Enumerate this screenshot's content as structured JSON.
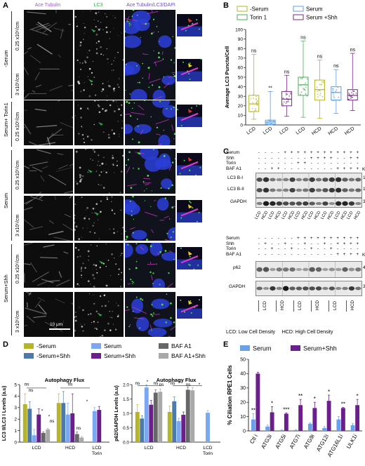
{
  "panel_labels": {
    "a": "A",
    "b": "B",
    "c": "C",
    "d": "D",
    "e": "E"
  },
  "panel_a": {
    "col_titles": [
      "Ace Tubulin",
      "LC3",
      "Ace Tubulin/LC3/DAPI"
    ],
    "groups": [
      "-Serum",
      "Serum+ Torin1",
      "Serum",
      "Serum+Shh"
    ],
    "densities": [
      "0.25 x10⁵/cm",
      "3 x10⁵/cm",
      "0.25 x10⁵/cm",
      "0.25 x10⁵/cm",
      "3 x10⁵/cm",
      "0.25 x10⁵/cm",
      "3 x10⁵/cm"
    ],
    "scale_main": "10 μm",
    "scale_inset": "3 μm",
    "colors": {
      "tubulin": "#d43bd0",
      "lc3": "#4cd84c",
      "dapi": "#2b3fd8",
      "arrow_green": "#2fa84f",
      "arrow_red": "#e0322b",
      "arrow_yellow": "#f0d020"
    }
  },
  "chart_data": [
    {
      "id": "B",
      "type": "box",
      "ylabel": "Average LC3 Puncta/Cell",
      "ylim": [
        0,
        100
      ],
      "yticks": [
        0,
        10,
        20,
        30,
        40,
        50,
        60,
        70,
        80,
        90,
        100
      ],
      "categories": [
        "LCD",
        "LCD",
        "LCD",
        "LCD",
        "HCD",
        "HCD",
        "HCD"
      ],
      "legend": [
        "-Serum",
        "Serum",
        "Torin 1",
        "Serum +Shh"
      ],
      "legend_colors": [
        "#b5b52a",
        "#5b9fe8",
        "#4cae5c",
        "#7a2a8a"
      ],
      "boxes": [
        {
          "group": "-Serum",
          "color": "#b5b52a",
          "min": 6,
          "q1": 14,
          "median": 22,
          "q3": 31,
          "max": 74,
          "sig": "ns"
        },
        {
          "group": "Serum",
          "color": "#5b9fe8",
          "min": 0,
          "q1": 1,
          "median": 3,
          "q3": 5,
          "max": 35,
          "sig": "**"
        },
        {
          "group": "Serum +Shh",
          "color": "#7a2a8a",
          "min": 9,
          "q1": 20,
          "median": 27,
          "q3": 35,
          "max": 52,
          "sig": "ns"
        },
        {
          "group": "Torin 1",
          "color": "#4cae5c",
          "min": 8,
          "q1": 31,
          "median": 42,
          "q3": 50,
          "max": 88,
          "sig": "ns"
        },
        {
          "group": "-Serum",
          "color": "#b5b52a",
          "min": 7,
          "q1": 26,
          "median": 37,
          "q3": 47,
          "max": 68,
          "sig": "ns"
        },
        {
          "group": "Serum",
          "color": "#5b9fe8",
          "min": 12,
          "q1": 26,
          "median": 34,
          "q3": 40,
          "max": 58,
          "sig": "ns"
        },
        {
          "group": "Serum +Shh",
          "color": "#7a2a8a",
          "min": 15,
          "q1": 26,
          "median": 31,
          "q3": 37,
          "max": 75,
          "sig": "ns"
        }
      ]
    },
    {
      "id": "D1",
      "type": "bar",
      "title": "Autophagy Flux",
      "ylabel": "LC3 II/LC3 I Levels (a.u)",
      "ylim": [
        0,
        5
      ],
      "yticks": [
        0,
        1,
        2,
        3,
        4,
        5
      ],
      "groups": [
        "LCD",
        "HCD",
        "LCD Torin"
      ],
      "series": [
        {
          "name": "-Serum",
          "color": "#b5b52a",
          "values": [
            3.3,
            3.4,
            null
          ],
          "err": [
            0.9,
            0.8,
            null
          ]
        },
        {
          "name": "-Serum+Shh",
          "color": "#4d7aa8",
          "values": [
            2.9,
            3.4,
            null
          ],
          "err": [
            0.6,
            1.0,
            null
          ]
        },
        {
          "name": "Serum",
          "color": "#7aa7f0",
          "values": [
            0.6,
            2.4,
            2.7
          ],
          "err": [
            0.5,
            1.0,
            0.3
          ]
        },
        {
          "name": "Serum+Shh",
          "color": "#6a1f8a",
          "values": [
            2.4,
            2.5,
            2.8
          ],
          "err": [
            0.5,
            1.7,
            0.3
          ]
        },
        {
          "name": "BAF A1",
          "color": "#666666",
          "values": [
            0.8,
            0.7,
            null
          ],
          "err": [
            0.1,
            0.2,
            null
          ]
        },
        {
          "name": "BAF A1+Shh",
          "color": "#a8a8a8",
          "values": [
            1.1,
            0.4,
            null
          ],
          "err": [
            0.1,
            0.1,
            null
          ]
        }
      ],
      "sig_labels": [
        "ns",
        "ns",
        "*",
        "*",
        "ns",
        "ns",
        "ns",
        "*"
      ]
    },
    {
      "id": "D2",
      "type": "bar",
      "title": "Autophagy Flux",
      "ylabel": "p62/GAPDH Levels (a.u)",
      "ylim": [
        0,
        2.0
      ],
      "yticks": [
        0.0,
        0.5,
        1.0,
        1.5,
        2.0
      ],
      "groups": [
        "LCD",
        "HCD",
        "LCD Torin"
      ],
      "series": [
        {
          "name": "-Serum",
          "color": "#b5b52a",
          "values": [
            1.05,
            1.05,
            null
          ],
          "err": [
            0.25,
            0.2,
            null
          ]
        },
        {
          "name": "-Serum+Shh",
          "color": "#4d7aa8",
          "values": [
            0.82,
            1.42,
            null
          ],
          "err": [
            0.1,
            0.15,
            null
          ]
        },
        {
          "name": "Serum",
          "color": "#7aa7f0",
          "values": [
            1.9,
            0.73,
            1.02
          ],
          "err": [
            0.1,
            0.1,
            0.08
          ]
        },
        {
          "name": "Serum+Shh",
          "color": "#6a1f8a",
          "values": [
            1.3,
            0.95,
            null
          ],
          "err": [
            0.15,
            0.1,
            null
          ]
        },
        {
          "name": "BAF A1",
          "color": "#666666",
          "values": [
            1.72,
            1.82,
            null
          ],
          "err": [
            0.1,
            0.1,
            null
          ]
        },
        {
          "name": "BAF A1+Shh",
          "color": "#a8a8a8",
          "values": [
            1.75,
            1.8,
            null
          ],
          "err": [
            0.1,
            0.1,
            null
          ]
        }
      ],
      "sig_labels": [
        "ns",
        "*",
        "ns",
        "ns",
        "ns",
        "*",
        "ns",
        "*"
      ]
    },
    {
      "id": "E",
      "type": "bar",
      "ylabel": "% Ciliation RPE1 Cells",
      "ylim": [
        0,
        50
      ],
      "yticks": [
        0,
        10,
        20,
        30,
        40,
        50
      ],
      "categories": [
        "Ctl i",
        "ATG3i",
        "ATG5i",
        "ATG7i",
        "ATG9i",
        "ATG12i",
        "ATG16L1i",
        "ULK1i"
      ],
      "series": [
        {
          "name": "Serum",
          "color": "#6aa0ea",
          "values": [
            8,
            3,
            0.5,
            0.5,
            5,
            2,
            8,
            4
          ],
          "err": [
            4,
            1,
            0.3,
            0.3,
            0.5,
            1,
            2,
            1
          ]
        },
        {
          "name": "Serum+Shh",
          "color": "#6a1f8a",
          "values": [
            40,
            13,
            12,
            18,
            16,
            21,
            16,
            18
          ],
          "err": [
            1,
            4,
            0.5,
            4,
            4,
            4,
            0.5,
            4
          ]
        }
      ],
      "sig": [
        "**",
        "*",
        "***",
        "**",
        "*",
        "*",
        "**",
        "*"
      ]
    }
  ],
  "panel_c": {
    "top_rows": [
      "Serum",
      "Shh",
      "Torin",
      "BAF A1"
    ],
    "top_signs": [
      [
        "-",
        "-",
        "-",
        "-",
        "+",
        "+",
        "+",
        "+",
        "+",
        "+",
        "+",
        "+",
        "+",
        "+",
        "+",
        "+"
      ],
      [
        "-",
        "-",
        "-",
        "-",
        "-",
        "-",
        "-",
        "-",
        "+",
        "+",
        "+",
        "+",
        "-",
        "-",
        "+",
        "+"
      ],
      [
        "-",
        "-",
        "-",
        "-",
        "-",
        "-",
        "+",
        "+",
        "-",
        "-",
        "-",
        "-",
        "-",
        "-",
        "-",
        "-"
      ],
      [
        "-",
        "-",
        "+",
        "+",
        "-",
        "-",
        "-",
        "-",
        "-",
        "-",
        "-",
        "-",
        "+",
        "+",
        "+",
        "+"
      ]
    ],
    "top_bands": [
      "LC3 B-I",
      "LC3 B-II",
      "GAPDH"
    ],
    "top_kd": [
      "17",
      "14",
      "35"
    ],
    "top_lanes": [
      "LCD",
      "HCD",
      "LCD",
      "HCD",
      "LCD",
      "HCD",
      "LCD",
      "HCD",
      "LCD",
      "HCD",
      "LCD",
      "HCD",
      "LCD",
      "HCD",
      "LCD",
      "HCD"
    ],
    "kd": "KD",
    "bottom_rows": [
      "Serum",
      "Shh",
      "Torin",
      "BAF A1"
    ],
    "bottom_signs": [
      [
        "-",
        "-",
        "-",
        "-",
        "-",
        "-",
        "+",
        "+",
        "+",
        "+",
        "+",
        "+",
        "+",
        "+",
        "+",
        "+"
      ],
      [
        "-",
        "+",
        "-",
        "-",
        "+",
        "-",
        "-",
        "+",
        "-",
        "-",
        "+",
        "-",
        "+",
        "+",
        "+",
        "+"
      ],
      [
        "-",
        "-",
        "+",
        "-",
        "-",
        "+",
        "-",
        "-",
        "+",
        "-",
        "-",
        "+",
        "-",
        "-",
        "-",
        "-"
      ],
      [
        "-",
        "-",
        "-",
        "-",
        "-",
        "-",
        "-",
        "-",
        "-",
        "-",
        "-",
        "-",
        "+",
        "+",
        "+",
        "+"
      ]
    ],
    "bottom_bands": [
      "p62",
      "GAPDH"
    ],
    "bottom_kd": [
      "48",
      "35"
    ],
    "bottom_groups": [
      "LCD",
      "HCD",
      "LCD",
      "HCD",
      "LCD",
      "HCD"
    ],
    "footnote": "LCD: Low Cell Density     HCD: High Cell Density"
  }
}
